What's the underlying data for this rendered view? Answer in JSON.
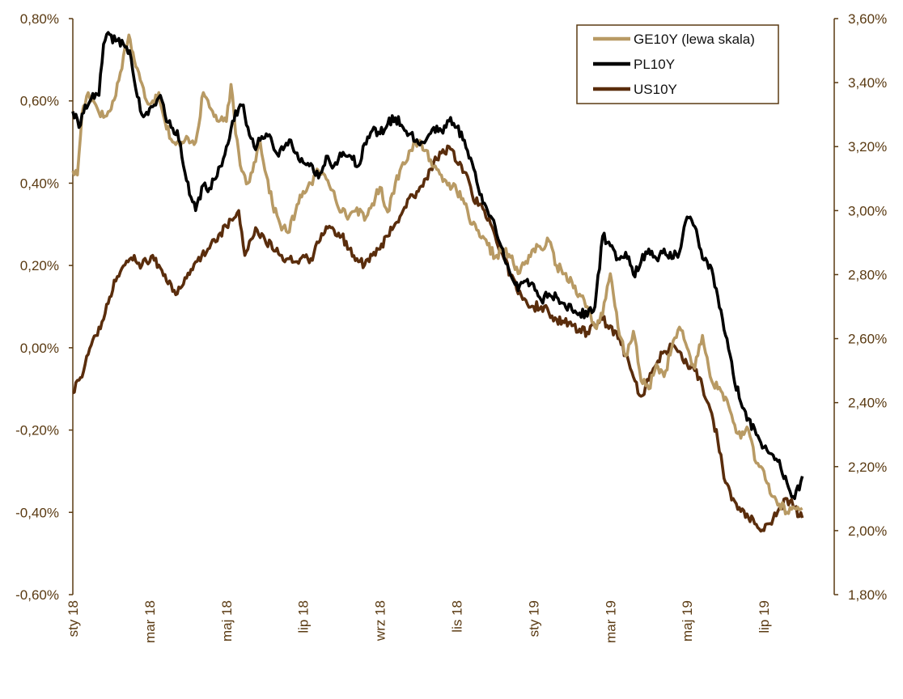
{
  "chart_data": {
    "type": "line",
    "title": "",
    "x": [
      "sty 18",
      "mar 18",
      "maj 18",
      "lip 18",
      "wrz 18",
      "lis 18",
      "sty 19",
      "mar 19",
      "maj 19",
      "lip 19"
    ],
    "y_left": {
      "label": "",
      "ylim": [
        -0.6,
        0.8
      ],
      "ticks": [
        "0,80%",
        "0,60%",
        "0,40%",
        "0,20%",
        "0,00%",
        "-0,20%",
        "-0,40%",
        "-0,60%"
      ]
    },
    "y_right": {
      "label": "",
      "ylim": [
        1.8,
        3.6
      ],
      "ticks": [
        "3,60%",
        "3,40%",
        "3,20%",
        "3,00%",
        "2,80%",
        "2,60%",
        "2,40%",
        "2,20%",
        "2,00%",
        "1,80%"
      ]
    },
    "legend_position": "top-right",
    "series": [
      {
        "name": "GE10Y (lewa skala)",
        "axis": "left",
        "color": "#b89a64",
        "anchors": [
          [
            0,
            0.43
          ],
          [
            0.06,
            0.42
          ],
          [
            0.12,
            0.57
          ],
          [
            0.2,
            0.62
          ],
          [
            0.3,
            0.59
          ],
          [
            0.4,
            0.56
          ],
          [
            0.5,
            0.58
          ],
          [
            0.6,
            0.65
          ],
          [
            0.66,
            0.71
          ],
          [
            0.73,
            0.76
          ],
          [
            0.8,
            0.7
          ],
          [
            0.88,
            0.65
          ],
          [
            0.96,
            0.6
          ],
          [
            1.04,
            0.6
          ],
          [
            1.12,
            0.62
          ],
          [
            1.2,
            0.55
          ],
          [
            1.3,
            0.5
          ],
          [
            1.4,
            0.49
          ],
          [
            1.5,
            0.51
          ],
          [
            1.6,
            0.5
          ],
          [
            1.7,
            0.62
          ],
          [
            1.8,
            0.58
          ],
          [
            1.9,
            0.55
          ],
          [
            2.0,
            0.55
          ],
          [
            2.06,
            0.64
          ],
          [
            2.12,
            0.52
          ],
          [
            2.2,
            0.43
          ],
          [
            2.28,
            0.4
          ],
          [
            2.36,
            0.45
          ],
          [
            2.44,
            0.5
          ],
          [
            2.52,
            0.42
          ],
          [
            2.6,
            0.35
          ],
          [
            2.7,
            0.3
          ],
          [
            2.8,
            0.28
          ],
          [
            2.9,
            0.33
          ],
          [
            3.0,
            0.38
          ],
          [
            3.1,
            0.4
          ],
          [
            3.2,
            0.43
          ],
          [
            3.3,
            0.41
          ],
          [
            3.4,
            0.38
          ],
          [
            3.5,
            0.33
          ],
          [
            3.6,
            0.32
          ],
          [
            3.7,
            0.34
          ],
          [
            3.8,
            0.31
          ],
          [
            3.9,
            0.35
          ],
          [
            4.0,
            0.39
          ],
          [
            4.1,
            0.33
          ],
          [
            4.2,
            0.4
          ],
          [
            4.3,
            0.45
          ],
          [
            4.4,
            0.48
          ],
          [
            4.5,
            0.5
          ],
          [
            4.6,
            0.48
          ],
          [
            4.7,
            0.44
          ],
          [
            4.8,
            0.42
          ],
          [
            4.9,
            0.4
          ],
          [
            5.0,
            0.38
          ],
          [
            5.1,
            0.35
          ],
          [
            5.2,
            0.3
          ],
          [
            5.3,
            0.27
          ],
          [
            5.4,
            0.25
          ],
          [
            5.5,
            0.22
          ],
          [
            5.6,
            0.24
          ],
          [
            5.7,
            0.22
          ],
          [
            5.8,
            0.18
          ],
          [
            5.9,
            0.21
          ],
          [
            6.0,
            0.24
          ],
          [
            6.1,
            0.24
          ],
          [
            6.2,
            0.26
          ],
          [
            6.3,
            0.2
          ],
          [
            6.4,
            0.18
          ],
          [
            6.5,
            0.16
          ],
          [
            6.6,
            0.13
          ],
          [
            6.7,
            0.1
          ],
          [
            6.8,
            0.05
          ],
          [
            6.9,
            0.08
          ],
          [
            7.0,
            0.18
          ],
          [
            7.1,
            0.05
          ],
          [
            7.2,
            -0.02
          ],
          [
            7.3,
            0.04
          ],
          [
            7.4,
            -0.08
          ],
          [
            7.5,
            -0.1
          ],
          [
            7.6,
            -0.04
          ],
          [
            7.7,
            -0.07
          ],
          [
            7.8,
            0.0
          ],
          [
            7.9,
            0.05
          ],
          [
            8.0,
            0.0
          ],
          [
            8.1,
            -0.05
          ],
          [
            8.2,
            0.03
          ],
          [
            8.3,
            -0.07
          ],
          [
            8.4,
            -0.1
          ],
          [
            8.5,
            -0.12
          ],
          [
            8.6,
            -0.18
          ],
          [
            8.7,
            -0.22
          ],
          [
            8.8,
            -0.2
          ],
          [
            8.9,
            -0.28
          ],
          [
            9.0,
            -0.3
          ],
          [
            9.1,
            -0.36
          ],
          [
            9.2,
            -0.38
          ],
          [
            9.3,
            -0.4
          ],
          [
            9.4,
            -0.39
          ],
          [
            9.5,
            -0.39
          ]
        ]
      },
      {
        "name": "PL10Y",
        "axis": "right",
        "color": "#000000",
        "anchors": [
          [
            0,
            3.31
          ],
          [
            0.08,
            3.26
          ],
          [
            0.16,
            3.33
          ],
          [
            0.24,
            3.35
          ],
          [
            0.34,
            3.36
          ],
          [
            0.4,
            3.52
          ],
          [
            0.48,
            3.55
          ],
          [
            0.56,
            3.53
          ],
          [
            0.66,
            3.52
          ],
          [
            0.74,
            3.5
          ],
          [
            0.82,
            3.38
          ],
          [
            0.9,
            3.3
          ],
          [
            0.98,
            3.3
          ],
          [
            1.06,
            3.33
          ],
          [
            1.14,
            3.36
          ],
          [
            1.2,
            3.3
          ],
          [
            1.28,
            3.26
          ],
          [
            1.36,
            3.25
          ],
          [
            1.44,
            3.14
          ],
          [
            1.52,
            3.05
          ],
          [
            1.6,
            3.0
          ],
          [
            1.7,
            3.08
          ],
          [
            1.78,
            3.07
          ],
          [
            1.86,
            3.1
          ],
          [
            1.94,
            3.14
          ],
          [
            2.0,
            3.2
          ],
          [
            2.08,
            3.28
          ],
          [
            2.16,
            3.32
          ],
          [
            2.22,
            3.33
          ],
          [
            2.28,
            3.26
          ],
          [
            2.36,
            3.2
          ],
          [
            2.44,
            3.22
          ],
          [
            2.52,
            3.24
          ],
          [
            2.6,
            3.21
          ],
          [
            2.68,
            3.17
          ],
          [
            2.76,
            3.2
          ],
          [
            2.84,
            3.22
          ],
          [
            2.92,
            3.18
          ],
          [
            3.0,
            3.15
          ],
          [
            3.08,
            3.14
          ],
          [
            3.16,
            3.11
          ],
          [
            3.24,
            3.12
          ],
          [
            3.32,
            3.17
          ],
          [
            3.4,
            3.14
          ],
          [
            3.48,
            3.18
          ],
          [
            3.56,
            3.17
          ],
          [
            3.64,
            3.16
          ],
          [
            3.72,
            3.14
          ],
          [
            3.8,
            3.21
          ],
          [
            3.9,
            3.25
          ],
          [
            4.0,
            3.24
          ],
          [
            4.1,
            3.27
          ],
          [
            4.2,
            3.29
          ],
          [
            4.3,
            3.26
          ],
          [
            4.4,
            3.24
          ],
          [
            4.5,
            3.21
          ],
          [
            4.6,
            3.22
          ],
          [
            4.7,
            3.26
          ],
          [
            4.8,
            3.25
          ],
          [
            4.9,
            3.28
          ],
          [
            5.0,
            3.26
          ],
          [
            5.1,
            3.22
          ],
          [
            5.2,
            3.15
          ],
          [
            5.3,
            3.05
          ],
          [
            5.4,
            3.0
          ],
          [
            5.5,
            2.95
          ],
          [
            5.6,
            2.88
          ],
          [
            5.7,
            2.8
          ],
          [
            5.8,
            2.75
          ],
          [
            5.9,
            2.78
          ],
          [
            6.0,
            2.77
          ],
          [
            6.1,
            2.72
          ],
          [
            6.2,
            2.74
          ],
          [
            6.3,
            2.73
          ],
          [
            6.4,
            2.71
          ],
          [
            6.5,
            2.69
          ],
          [
            6.6,
            2.68
          ],
          [
            6.7,
            2.67
          ],
          [
            6.8,
            2.7
          ],
          [
            6.9,
            2.92
          ],
          [
            7.0,
            2.89
          ],
          [
            7.1,
            2.85
          ],
          [
            7.2,
            2.87
          ],
          [
            7.3,
            2.8
          ],
          [
            7.4,
            2.84
          ],
          [
            7.5,
            2.88
          ],
          [
            7.6,
            2.85
          ],
          [
            7.7,
            2.88
          ],
          [
            7.8,
            2.85
          ],
          [
            7.9,
            2.87
          ],
          [
            8.0,
            2.98
          ],
          [
            8.1,
            2.95
          ],
          [
            8.2,
            2.85
          ],
          [
            8.3,
            2.83
          ],
          [
            8.4,
            2.73
          ],
          [
            8.5,
            2.61
          ],
          [
            8.6,
            2.49
          ],
          [
            8.7,
            2.4
          ],
          [
            8.8,
            2.35
          ],
          [
            8.9,
            2.3
          ],
          [
            9.0,
            2.26
          ],
          [
            9.1,
            2.24
          ],
          [
            9.2,
            2.22
          ],
          [
            9.3,
            2.15
          ],
          [
            9.4,
            2.1
          ],
          [
            9.5,
            2.17
          ]
        ]
      },
      {
        "name": "US10Y",
        "axis": "right",
        "color": "#5a2d0c",
        "anchors": [
          [
            0,
            2.43
          ],
          [
            0.08,
            2.47
          ],
          [
            0.16,
            2.52
          ],
          [
            0.24,
            2.58
          ],
          [
            0.32,
            2.61
          ],
          [
            0.4,
            2.66
          ],
          [
            0.48,
            2.73
          ],
          [
            0.56,
            2.78
          ],
          [
            0.64,
            2.82
          ],
          [
            0.72,
            2.84
          ],
          [
            0.8,
            2.86
          ],
          [
            0.88,
            2.82
          ],
          [
            0.96,
            2.84
          ],
          [
            1.04,
            2.86
          ],
          [
            1.12,
            2.83
          ],
          [
            1.2,
            2.8
          ],
          [
            1.28,
            2.77
          ],
          [
            1.36,
            2.74
          ],
          [
            1.44,
            2.77
          ],
          [
            1.52,
            2.8
          ],
          [
            1.6,
            2.84
          ],
          [
            1.68,
            2.86
          ],
          [
            1.76,
            2.88
          ],
          [
            1.84,
            2.91
          ],
          [
            1.92,
            2.93
          ],
          [
            2.0,
            2.95
          ],
          [
            2.08,
            2.97
          ],
          [
            2.16,
            3.0
          ],
          [
            2.24,
            2.86
          ],
          [
            2.32,
            2.91
          ],
          [
            2.4,
            2.94
          ],
          [
            2.5,
            2.91
          ],
          [
            2.6,
            2.88
          ],
          [
            2.7,
            2.86
          ],
          [
            2.8,
            2.85
          ],
          [
            2.9,
            2.84
          ],
          [
            3.0,
            2.86
          ],
          [
            3.1,
            2.85
          ],
          [
            3.2,
            2.9
          ],
          [
            3.3,
            2.95
          ],
          [
            3.4,
            2.94
          ],
          [
            3.5,
            2.92
          ],
          [
            3.6,
            2.88
          ],
          [
            3.7,
            2.85
          ],
          [
            3.8,
            2.83
          ],
          [
            3.9,
            2.86
          ],
          [
            4.0,
            2.88
          ],
          [
            4.1,
            2.92
          ],
          [
            4.2,
            2.96
          ],
          [
            4.3,
            3.0
          ],
          [
            4.4,
            3.05
          ],
          [
            4.5,
            3.06
          ],
          [
            4.6,
            3.1
          ],
          [
            4.7,
            3.15
          ],
          [
            4.8,
            3.18
          ],
          [
            4.9,
            3.2
          ],
          [
            5.0,
            3.15
          ],
          [
            5.1,
            3.12
          ],
          [
            5.2,
            3.05
          ],
          [
            5.3,
            3.02
          ],
          [
            5.4,
            2.97
          ],
          [
            5.5,
            2.92
          ],
          [
            5.6,
            2.86
          ],
          [
            5.7,
            2.8
          ],
          [
            5.8,
            2.74
          ],
          [
            5.9,
            2.72
          ],
          [
            6.0,
            2.7
          ],
          [
            6.1,
            2.7
          ],
          [
            6.2,
            2.68
          ],
          [
            6.3,
            2.66
          ],
          [
            6.4,
            2.65
          ],
          [
            6.5,
            2.64
          ],
          [
            6.6,
            2.63
          ],
          [
            6.7,
            2.62
          ],
          [
            6.8,
            2.64
          ],
          [
            6.9,
            2.66
          ],
          [
            7.0,
            2.64
          ],
          [
            7.1,
            2.6
          ],
          [
            7.2,
            2.55
          ],
          [
            7.3,
            2.48
          ],
          [
            7.4,
            2.42
          ],
          [
            7.5,
            2.47
          ],
          [
            7.6,
            2.52
          ],
          [
            7.7,
            2.56
          ],
          [
            7.8,
            2.58
          ],
          [
            7.9,
            2.56
          ],
          [
            8.0,
            2.52
          ],
          [
            8.1,
            2.5
          ],
          [
            8.2,
            2.45
          ],
          [
            8.3,
            2.38
          ],
          [
            8.4,
            2.28
          ],
          [
            8.5,
            2.15
          ],
          [
            8.6,
            2.1
          ],
          [
            8.7,
            2.06
          ],
          [
            8.8,
            2.04
          ],
          [
            8.9,
            2.02
          ],
          [
            9.0,
            2.0
          ],
          [
            9.1,
            2.02
          ],
          [
            9.2,
            2.07
          ],
          [
            9.3,
            2.1
          ],
          [
            9.4,
            2.07
          ],
          [
            9.5,
            2.04
          ]
        ]
      }
    ]
  }
}
